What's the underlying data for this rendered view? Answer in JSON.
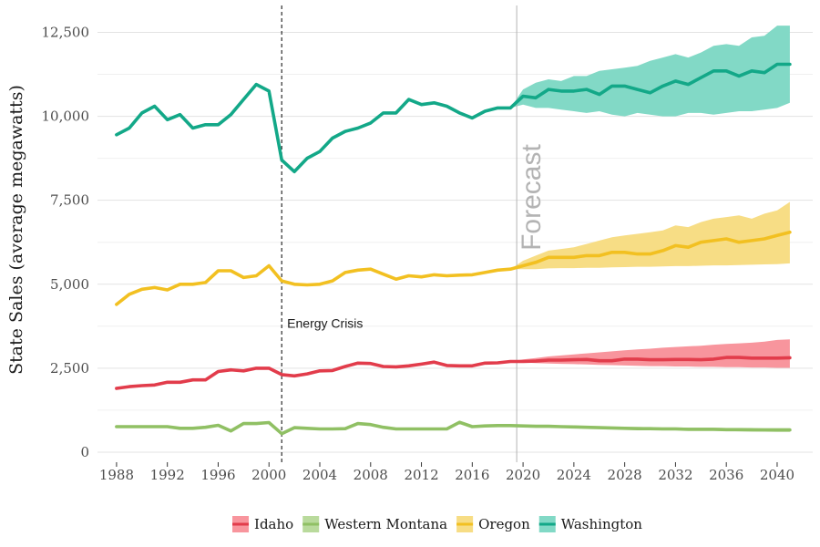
{
  "chart_data": {
    "type": "line",
    "title": "",
    "xlabel": "",
    "ylabel": "State Sales (average megawatts)",
    "xlim": [
      1986.5,
      2042.8
    ],
    "ylim": [
      -300,
      13300
    ],
    "x_ticks": [
      1988,
      1992,
      1996,
      2000,
      2004,
      2008,
      2012,
      2016,
      2020,
      2024,
      2028,
      2032,
      2036,
      2040
    ],
    "y_ticks": [
      0,
      2500,
      5000,
      7500,
      10000,
      12500
    ],
    "y_tick_labels": [
      "0",
      "2,500",
      "5,000",
      "7,500",
      "10,000",
      "12,500"
    ],
    "grid": true,
    "legend_position": "bottom",
    "annotations": [
      {
        "type": "vline",
        "x": 2001,
        "style": "dashed",
        "color": "#000000",
        "label": "Energy Crisis",
        "label_y": 3700
      },
      {
        "type": "vline",
        "x": 2019.5,
        "style": "solid",
        "color": "#b3b3b3",
        "label": "Forecast",
        "label_y": 6000
      }
    ],
    "series": [
      {
        "name": "Idaho",
        "color": "#e23c4b",
        "band_color": "#f8959d",
        "x": [
          1988,
          1989,
          1990,
          1991,
          1992,
          1993,
          1994,
          1995,
          1996,
          1997,
          1998,
          1999,
          2000,
          2001,
          2002,
          2003,
          2004,
          2005,
          2006,
          2007,
          2008,
          2009,
          2010,
          2011,
          2012,
          2013,
          2014,
          2015,
          2016,
          2017,
          2018,
          2019,
          2020,
          2021,
          2022,
          2023,
          2024,
          2025,
          2026,
          2027,
          2028,
          2029,
          2030,
          2031,
          2032,
          2033,
          2034,
          2035,
          2036,
          2037,
          2038,
          2039,
          2040,
          2041
        ],
        "values": [
          1900,
          1950,
          1980,
          2000,
          2080,
          2080,
          2150,
          2150,
          2400,
          2450,
          2420,
          2500,
          2500,
          2310,
          2270,
          2330,
          2420,
          2430,
          2550,
          2650,
          2640,
          2550,
          2540,
          2570,
          2620,
          2680,
          2580,
          2570,
          2570,
          2650,
          2660,
          2700,
          2700,
          2710,
          2740,
          2740,
          2750,
          2760,
          2720,
          2720,
          2770,
          2770,
          2750,
          2750,
          2760,
          2760,
          2750,
          2770,
          2820,
          2820,
          2800,
          2800,
          2800,
          2810
        ],
        "band_x": [
          2019,
          2020,
          2021,
          2022,
          2023,
          2024,
          2025,
          2026,
          2027,
          2028,
          2029,
          2030,
          2031,
          2032,
          2033,
          2034,
          2035,
          2036,
          2037,
          2038,
          2039,
          2040,
          2041
        ],
        "band_low": [
          2700,
          2670,
          2650,
          2640,
          2630,
          2620,
          2610,
          2600,
          2590,
          2580,
          2570,
          2560,
          2560,
          2550,
          2550,
          2540,
          2540,
          2530,
          2530,
          2520,
          2520,
          2510,
          2510
        ],
        "band_high": [
          2700,
          2760,
          2800,
          2850,
          2880,
          2910,
          2940,
          2970,
          3000,
          3030,
          3060,
          3080,
          3110,
          3130,
          3150,
          3170,
          3200,
          3220,
          3240,
          3260,
          3290,
          3340,
          3360
        ]
      },
      {
        "name": "Western Montana",
        "color": "#90c064",
        "band_color": "#b9da9c",
        "x": [
          1988,
          1989,
          1990,
          1991,
          1992,
          1993,
          1994,
          1995,
          1996,
          1997,
          1998,
          1999,
          2000,
          2001,
          2002,
          2003,
          2004,
          2005,
          2006,
          2007,
          2008,
          2009,
          2010,
          2011,
          2012,
          2013,
          2014,
          2015,
          2016,
          2017,
          2018,
          2019,
          2020,
          2021,
          2022,
          2023,
          2024,
          2025,
          2026,
          2027,
          2028,
          2029,
          2030,
          2031,
          2032,
          2033,
          2034,
          2035,
          2036,
          2037,
          2038,
          2039,
          2040,
          2041
        ],
        "values": [
          760,
          760,
          760,
          760,
          760,
          710,
          710,
          740,
          800,
          630,
          850,
          850,
          880,
          550,
          730,
          710,
          690,
          690,
          700,
          850,
          820,
          740,
          690,
          690,
          690,
          690,
          690,
          890,
          760,
          780,
          790,
          790,
          780,
          770,
          770,
          760,
          750,
          740,
          730,
          720,
          710,
          700,
          700,
          690,
          690,
          680,
          680,
          680,
          670,
          670,
          660,
          660,
          660,
          660
        ],
        "band_x": [
          2019,
          2020,
          2021,
          2022,
          2023,
          2024,
          2025,
          2026,
          2027,
          2028,
          2029,
          2030,
          2031,
          2032,
          2033,
          2034,
          2035,
          2036,
          2037,
          2038,
          2039,
          2040,
          2041
        ],
        "band_low": [
          790,
          770,
          760,
          750,
          740,
          730,
          720,
          710,
          700,
          690,
          680,
          670,
          660,
          660,
          650,
          640,
          640,
          630,
          620,
          620,
          610,
          600,
          600
        ],
        "band_high": [
          790,
          790,
          790,
          780,
          780,
          770,
          770,
          760,
          760,
          750,
          750,
          740,
          740,
          740,
          730,
          730,
          730,
          720,
          720,
          720,
          710,
          710,
          710
        ]
      },
      {
        "name": "Oregon",
        "color": "#f2c021",
        "band_color": "#f7dd85",
        "x": [
          1988,
          1989,
          1990,
          1991,
          1992,
          1993,
          1994,
          1995,
          1996,
          1997,
          1998,
          1999,
          2000,
          2001,
          2002,
          2003,
          2004,
          2005,
          2006,
          2007,
          2008,
          2009,
          2010,
          2011,
          2012,
          2013,
          2014,
          2015,
          2016,
          2017,
          2018,
          2019,
          2020,
          2021,
          2022,
          2023,
          2024,
          2025,
          2026,
          2027,
          2028,
          2029,
          2030,
          2031,
          2032,
          2033,
          2034,
          2035,
          2036,
          2037,
          2038,
          2039,
          2040,
          2041
        ],
        "values": [
          4400,
          4700,
          4850,
          4900,
          4830,
          5000,
          5000,
          5050,
          5400,
          5400,
          5200,
          5250,
          5550,
          5100,
          5000,
          4980,
          5000,
          5100,
          5350,
          5420,
          5450,
          5300,
          5150,
          5250,
          5220,
          5280,
          5250,
          5270,
          5280,
          5350,
          5420,
          5450,
          5550,
          5650,
          5800,
          5800,
          5800,
          5850,
          5850,
          5950,
          5950,
          5900,
          5900,
          6000,
          6150,
          6100,
          6250,
          6300,
          6350,
          6250,
          6300,
          6350,
          6450,
          6550
        ],
        "band_x": [
          2019,
          2020,
          2021,
          2022,
          2023,
          2024,
          2025,
          2026,
          2027,
          2028,
          2029,
          2030,
          2031,
          2032,
          2033,
          2034,
          2035,
          2036,
          2037,
          2038,
          2039,
          2040,
          2041
        ],
        "band_low": [
          5450,
          5450,
          5450,
          5470,
          5480,
          5480,
          5490,
          5490,
          5500,
          5510,
          5520,
          5520,
          5530,
          5540,
          5540,
          5550,
          5560,
          5560,
          5570,
          5580,
          5590,
          5600,
          5620
        ],
        "band_high": [
          5450,
          5700,
          5850,
          6000,
          6050,
          6100,
          6200,
          6300,
          6400,
          6450,
          6500,
          6550,
          6600,
          6750,
          6700,
          6850,
          6950,
          7000,
          7050,
          6950,
          7100,
          7200,
          7450
        ]
      },
      {
        "name": "Washington",
        "color": "#13a888",
        "band_color": "#82d9c6",
        "x": [
          1988,
          1989,
          1990,
          1991,
          1992,
          1993,
          1994,
          1995,
          1996,
          1997,
          1998,
          1999,
          2000,
          2001,
          2002,
          2003,
          2004,
          2005,
          2006,
          2007,
          2008,
          2009,
          2010,
          2011,
          2012,
          2013,
          2014,
          2015,
          2016,
          2017,
          2018,
          2019,
          2020,
          2021,
          2022,
          2023,
          2024,
          2025,
          2026,
          2027,
          2028,
          2029,
          2030,
          2031,
          2032,
          2033,
          2034,
          2035,
          2036,
          2037,
          2038,
          2039,
          2040,
          2041
        ],
        "values": [
          9450,
          9650,
          10100,
          10300,
          9900,
          10050,
          9650,
          9750,
          9750,
          10050,
          10500,
          10950,
          10750,
          8700,
          8350,
          8750,
          8950,
          9350,
          9550,
          9650,
          9800,
          10100,
          10100,
          10500,
          10350,
          10400,
          10300,
          10100,
          9950,
          10150,
          10250,
          10250,
          10600,
          10550,
          10800,
          10750,
          10750,
          10800,
          10650,
          10900,
          10900,
          10800,
          10700,
          10900,
          11050,
          10950,
          11150,
          11350,
          11350,
          11200,
          11350,
          11300,
          11550,
          11550
        ],
        "band_x": [
          2019,
          2020,
          2021,
          2022,
          2023,
          2024,
          2025,
          2026,
          2027,
          2028,
          2029,
          2030,
          2031,
          2032,
          2033,
          2034,
          2035,
          2036,
          2037,
          2038,
          2039,
          2040,
          2041
        ],
        "band_low": [
          10250,
          10350,
          10250,
          10250,
          10200,
          10150,
          10100,
          10150,
          10050,
          10000,
          10100,
          10050,
          10000,
          10000,
          10100,
          10100,
          10050,
          10100,
          10150,
          10150,
          10200,
          10250,
          10400
        ],
        "band_high": [
          10250,
          10800,
          11000,
          11100,
          11050,
          11200,
          11200,
          11350,
          11400,
          11450,
          11500,
          11650,
          11750,
          11850,
          11750,
          11900,
          12100,
          12150,
          12100,
          12350,
          12400,
          12700,
          12700
        ]
      }
    ]
  }
}
